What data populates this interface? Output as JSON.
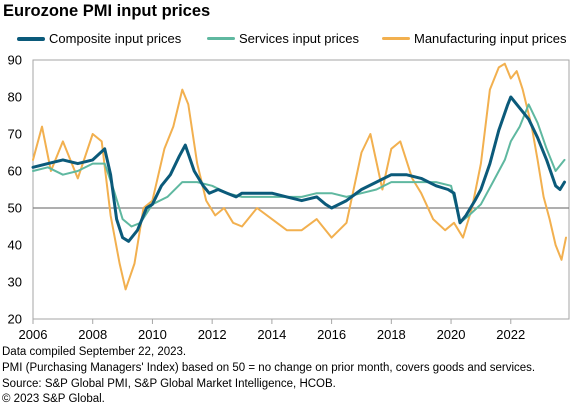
{
  "title": "Eurozone PMI input prices",
  "footnotes": [
    "Data compiled September 22, 2023.",
    "PMI (Purchasing Managers' Index) based on 50 = no change on prior month, covers goods and services.",
    "Source: S&P Global PMI, S&P Global Market Intelligence, HCOB.",
    "© 2023 S&P Global."
  ],
  "chart_data": {
    "type": "line",
    "title": "Eurozone PMI input prices",
    "xlabel": "",
    "ylabel": "",
    "xlim": [
      2006.0,
      2023.95
    ],
    "ylim": [
      20,
      90
    ],
    "x_ticks": [
      "2006",
      "2008",
      "2010",
      "2012",
      "2014",
      "2016",
      "2018",
      "2020",
      "2022"
    ],
    "y_ticks": [
      "90",
      "80",
      "70",
      "60",
      "50",
      "40",
      "30",
      "20"
    ],
    "reference_line": 50,
    "grid": false,
    "legend_position": "top",
    "series": [
      {
        "name": "Composite input prices",
        "color": "#0b5a7a",
        "width": 3,
        "x": [
          2006.0,
          2006.5,
          2007.0,
          2007.5,
          2008.0,
          2008.4,
          2008.6,
          2008.8,
          2009.0,
          2009.2,
          2009.5,
          2009.8,
          2010.0,
          2010.3,
          2010.6,
          2010.9,
          2011.1,
          2011.4,
          2011.7,
          2011.9,
          2012.2,
          2012.5,
          2012.8,
          2013.0,
          2013.5,
          2014.0,
          2014.5,
          2015.0,
          2015.5,
          2015.8,
          2016.0,
          2016.5,
          2017.0,
          2017.5,
          2018.0,
          2018.5,
          2019.0,
          2019.5,
          2019.9,
          2020.1,
          2020.3,
          2020.5,
          2020.8,
          2021.0,
          2021.3,
          2021.6,
          2021.9,
          2022.0,
          2022.3,
          2022.6,
          2022.9,
          2023.2,
          2023.5,
          2023.65,
          2023.8
        ],
        "values": [
          61,
          62,
          63,
          62,
          63,
          66,
          59,
          47,
          42,
          41,
          44,
          50,
          51,
          56,
          59,
          64,
          67,
          60,
          56,
          54,
          55,
          54,
          53,
          54,
          54,
          54,
          53,
          52,
          53,
          51,
          50,
          52,
          55,
          57,
          59,
          59,
          58,
          56,
          55,
          54,
          46,
          48,
          52,
          55,
          62,
          71,
          78,
          80,
          77,
          74,
          69,
          63,
          56,
          55,
          57
        ]
      },
      {
        "name": "Services input prices",
        "color": "#5fb8a0",
        "width": 2,
        "x": [
          2006.0,
          2006.5,
          2007.0,
          2007.5,
          2008.0,
          2008.4,
          2008.7,
          2009.0,
          2009.3,
          2009.6,
          2010.0,
          2010.5,
          2011.0,
          2011.5,
          2012.0,
          2012.5,
          2013.0,
          2013.5,
          2014.0,
          2014.5,
          2015.0,
          2015.5,
          2016.0,
          2016.5,
          2017.0,
          2017.5,
          2018.0,
          2018.5,
          2019.0,
          2019.5,
          2020.0,
          2020.3,
          2020.6,
          2021.0,
          2021.4,
          2021.8,
          2022.0,
          2022.3,
          2022.6,
          2022.9,
          2023.2,
          2023.5,
          2023.8
        ],
        "values": [
          60,
          61,
          59,
          60,
          62,
          62,
          55,
          47,
          45,
          46,
          51,
          53,
          57,
          57,
          56,
          54,
          53,
          53,
          53,
          53,
          53,
          54,
          54,
          53,
          54,
          55,
          57,
          57,
          57,
          57,
          56,
          46,
          48,
          51,
          57,
          63,
          68,
          72,
          78,
          73,
          66,
          60,
          63
        ]
      },
      {
        "name": "Manufacturing input prices",
        "color": "#f2b04f",
        "width": 2,
        "x": [
          2006.0,
          2006.3,
          2006.6,
          2007.0,
          2007.5,
          2008.0,
          2008.3,
          2008.6,
          2008.9,
          2009.1,
          2009.4,
          2009.7,
          2010.0,
          2010.4,
          2010.7,
          2011.0,
          2011.2,
          2011.5,
          2011.8,
          2012.1,
          2012.4,
          2012.7,
          2013.0,
          2013.5,
          2014.0,
          2014.5,
          2015.0,
          2015.5,
          2016.0,
          2016.5,
          2017.0,
          2017.3,
          2017.7,
          2018.0,
          2018.3,
          2018.7,
          2019.0,
          2019.4,
          2019.8,
          2020.1,
          2020.4,
          2020.7,
          2021.0,
          2021.3,
          2021.6,
          2021.8,
          2022.0,
          2022.2,
          2022.4,
          2022.7,
          2022.9,
          2023.1,
          2023.3,
          2023.5,
          2023.7,
          2023.85
        ],
        "values": [
          63,
          72,
          60,
          68,
          58,
          70,
          68,
          48,
          35,
          28,
          35,
          50,
          52,
          66,
          72,
          82,
          78,
          62,
          52,
          48,
          50,
          46,
          45,
          50,
          47,
          44,
          44,
          47,
          42,
          46,
          65,
          70,
          55,
          66,
          68,
          58,
          54,
          47,
          44,
          46,
          42,
          50,
          62,
          82,
          88,
          89,
          85,
          87,
          82,
          72,
          63,
          53,
          47,
          40,
          36,
          42
        ]
      }
    ]
  }
}
